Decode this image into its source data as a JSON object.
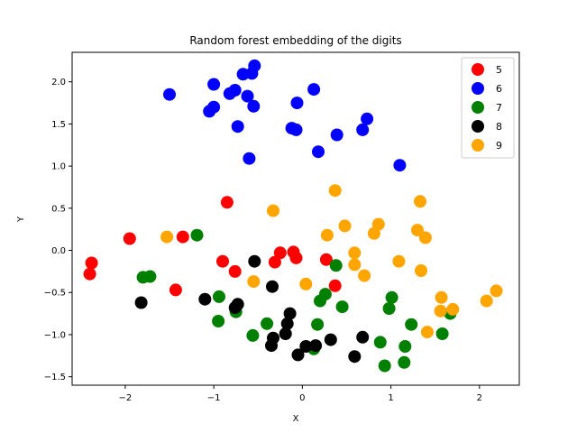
{
  "chart_data": {
    "type": "scatter",
    "title": "Random forest embedding of the digits",
    "xlabel": "X",
    "ylabel": "Y",
    "xlim": [
      -2.6,
      2.45
    ],
    "ylim": [
      -1.6,
      2.35
    ],
    "xticks": [
      -2,
      -1,
      0,
      1,
      2
    ],
    "yticks": [
      -1.5,
      -1.0,
      -0.5,
      0.0,
      0.5,
      1.0,
      1.5,
      2.0
    ],
    "ytick_labels": [
      "−1.5",
      "−1.0",
      "−0.5",
      "0.0",
      "0.5",
      "1.0",
      "1.5",
      "2.0"
    ],
    "xtick_labels": [
      "−2",
      "−1",
      "0",
      "1",
      "2"
    ],
    "grid": false,
    "legend_position": "top-right",
    "series": [
      {
        "name": "5",
        "color": "#ff0000",
        "points": [
          [
            -2.38,
            -0.15
          ],
          [
            -2.4,
            -0.28
          ],
          [
            -1.95,
            0.14
          ],
          [
            -1.35,
            0.16
          ],
          [
            -0.85,
            0.57
          ],
          [
            -1.43,
            -0.47
          ],
          [
            -0.9,
            -0.13
          ],
          [
            -0.76,
            -0.25
          ],
          [
            -0.25,
            -0.03
          ],
          [
            -0.1,
            -0.02
          ],
          [
            -0.07,
            -0.09
          ],
          [
            -0.31,
            -0.14
          ],
          [
            0.27,
            -0.11
          ],
          [
            0.37,
            -0.42
          ]
        ]
      },
      {
        "name": "6",
        "color": "#0000ff",
        "points": [
          [
            -1.5,
            1.85
          ],
          [
            -1.0,
            1.97
          ],
          [
            -0.82,
            1.86
          ],
          [
            -0.76,
            1.9
          ],
          [
            -0.67,
            2.09
          ],
          [
            -0.54,
            2.19
          ],
          [
            -0.57,
            2.1
          ],
          [
            -0.62,
            1.83
          ],
          [
            -0.55,
            1.71
          ],
          [
            -1.0,
            1.7
          ],
          [
            -1.05,
            1.65
          ],
          [
            -0.73,
            1.47
          ],
          [
            -0.6,
            1.09
          ],
          [
            -0.12,
            1.45
          ],
          [
            -0.07,
            1.43
          ],
          [
            -0.06,
            1.75
          ],
          [
            0.13,
            1.91
          ],
          [
            0.18,
            1.17
          ],
          [
            0.39,
            1.37
          ],
          [
            0.68,
            1.43
          ],
          [
            0.73,
            1.56
          ],
          [
            1.1,
            1.01
          ]
        ]
      },
      {
        "name": "7",
        "color": "#008000",
        "points": [
          [
            -1.19,
            0.18
          ],
          [
            -1.8,
            -0.32
          ],
          [
            -1.72,
            -0.31
          ],
          [
            -0.94,
            -0.55
          ],
          [
            -0.95,
            -0.84
          ],
          [
            -0.75,
            -0.73
          ],
          [
            -0.56,
            -1.01
          ],
          [
            -0.4,
            -0.87
          ],
          [
            0.13,
            -1.17
          ],
          [
            0.17,
            -0.88
          ],
          [
            0.2,
            -0.6
          ],
          [
            0.26,
            -0.52
          ],
          [
            0.38,
            -0.18
          ],
          [
            0.45,
            -0.67
          ],
          [
            0.88,
            -1.09
          ],
          [
            0.93,
            -1.37
          ],
          [
            0.98,
            -0.69
          ],
          [
            1.01,
            -0.56
          ],
          [
            1.15,
            -1.33
          ],
          [
            1.16,
            -1.14
          ],
          [
            1.23,
            -0.88
          ],
          [
            1.58,
            -0.99
          ],
          [
            1.67,
            -0.75
          ]
        ]
      },
      {
        "name": "8",
        "color": "#000000",
        "points": [
          [
            -1.82,
            -0.62
          ],
          [
            -1.1,
            -0.58
          ],
          [
            -0.76,
            -0.68
          ],
          [
            -0.73,
            -0.64
          ],
          [
            -0.54,
            -0.13
          ],
          [
            -0.34,
            -0.43
          ],
          [
            -0.35,
            -1.13
          ],
          [
            -0.33,
            -1.04
          ],
          [
            -0.19,
            -0.99
          ],
          [
            -0.17,
            -0.87
          ],
          [
            -0.14,
            -0.75
          ],
          [
            -0.05,
            -1.24
          ],
          [
            0.04,
            -1.14
          ],
          [
            0.15,
            -1.13
          ],
          [
            0.32,
            -1.06
          ],
          [
            0.59,
            -1.26
          ],
          [
            0.68,
            -1.03
          ]
        ]
      },
      {
        "name": "9",
        "color": "#ffa500",
        "points": [
          [
            -1.53,
            0.16
          ],
          [
            -0.55,
            -0.37
          ],
          [
            -0.33,
            0.47
          ],
          [
            0.04,
            -0.4
          ],
          [
            0.28,
            0.18
          ],
          [
            0.37,
            0.71
          ],
          [
            0.48,
            0.29
          ],
          [
            0.59,
            -0.03
          ],
          [
            0.59,
            -0.17
          ],
          [
            0.7,
            -0.3
          ],
          [
            0.81,
            0.2
          ],
          [
            0.86,
            0.31
          ],
          [
            1.09,
            -0.13
          ],
          [
            1.3,
            0.24
          ],
          [
            1.33,
            0.58
          ],
          [
            1.34,
            -0.24
          ],
          [
            1.39,
            0.15
          ],
          [
            1.41,
            -0.97
          ],
          [
            1.56,
            -0.72
          ],
          [
            1.57,
            -0.56
          ],
          [
            1.7,
            -0.7
          ],
          [
            2.08,
            -0.6
          ],
          [
            2.19,
            -0.48
          ]
        ]
      }
    ]
  }
}
